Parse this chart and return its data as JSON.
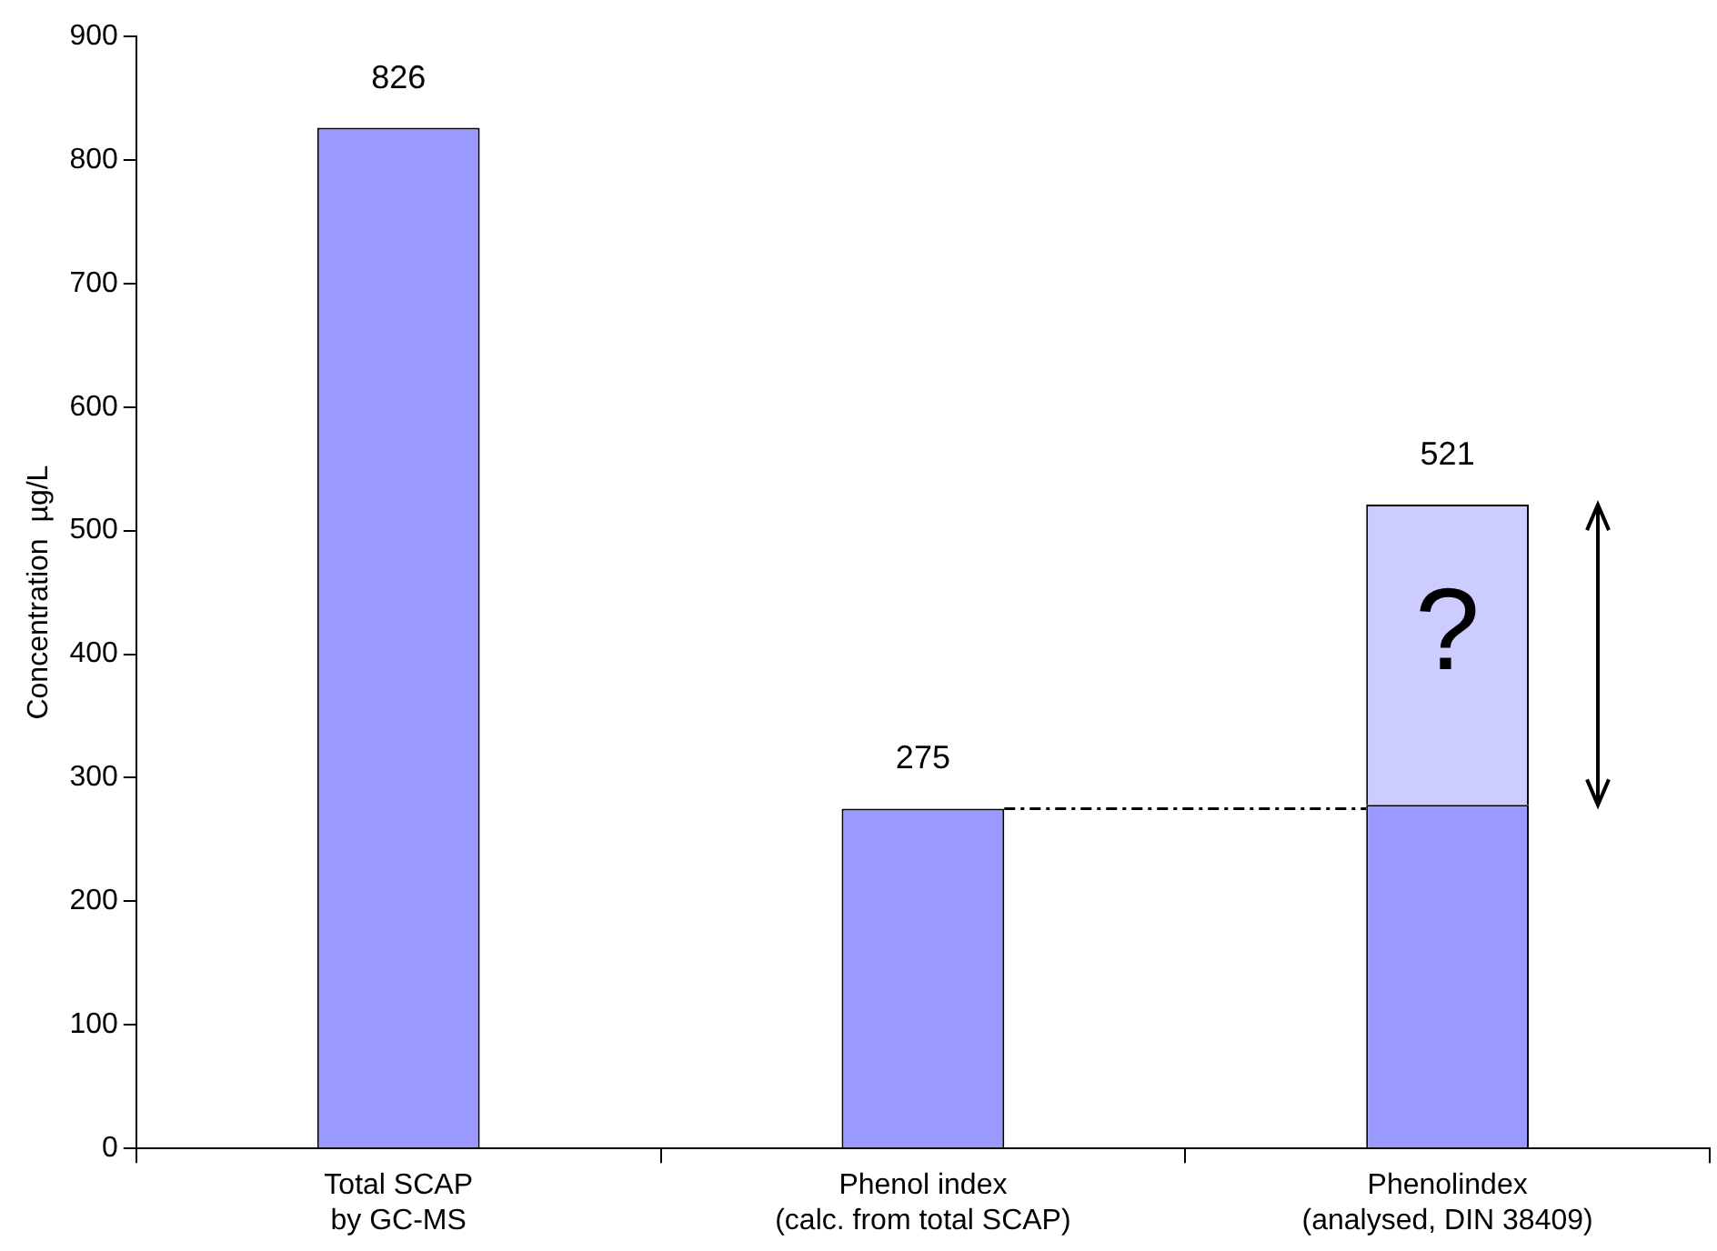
{
  "chart_data": {
    "type": "bar",
    "stacked": true,
    "categories": [
      "Total SCAP\nby GC-MS",
      "Phenol index\n(calc. from total SCAP)",
      "Phenolindex\n(analysed, DIN 38409)"
    ],
    "series": [
      {
        "color": "#9999ff",
        "values": [
          826,
          275,
          278
        ]
      },
      {
        "color": "#ccccff",
        "values": [
          null,
          null,
          243
        ]
      }
    ],
    "totals": [
      "826",
      "275",
      "521"
    ],
    "ylabel": "Concentration  µg/L",
    "ylim": [
      0,
      900
    ],
    "yticks": [
      0,
      100,
      200,
      300,
      400,
      500,
      600,
      700,
      800,
      900
    ],
    "ref_lines": [
      {
        "axis": "y",
        "value": 275,
        "color": "#000000",
        "line_style": "dashed"
      }
    ],
    "annotations": [
      "?"
    ],
    "grid": false,
    "legend": false
  }
}
